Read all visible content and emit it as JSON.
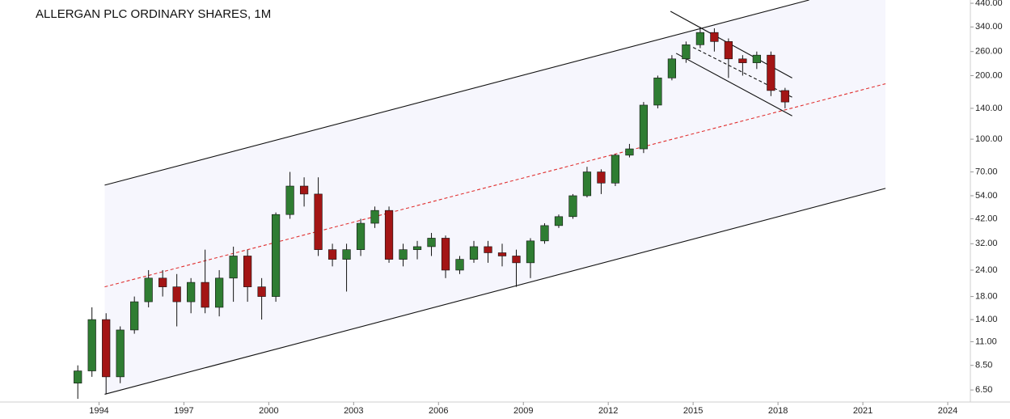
{
  "chart_data": {
    "type": "candlestick",
    "title": "ALLERGAN PLC ORDINARY SHARES, 1M",
    "log_scale": true,
    "up_color": "#2f7d32",
    "down_color": "#a31515",
    "channel_color": "#f6f6fd",
    "xlim": [
      1990.5,
      2024.8
    ],
    "xticks": [
      1994,
      1997,
      2000,
      2003,
      2006,
      2009,
      2012,
      2015,
      2018,
      2021,
      2024
    ],
    "ylim": [
      5.7,
      456
    ],
    "yticks": [
      {
        "value": 6.5,
        "label": "6.50"
      },
      {
        "value": 8.5,
        "label": "8.50"
      },
      {
        "value": 11,
        "label": "11.00"
      },
      {
        "value": 14,
        "label": "14.00"
      },
      {
        "value": 18,
        "label": "18.00"
      },
      {
        "value": 24,
        "label": "24.00"
      },
      {
        "value": 32,
        "label": "32.00"
      },
      {
        "value": 42,
        "label": "42.00"
      },
      {
        "value": 54,
        "label": "54.00"
      },
      {
        "value": 70,
        "label": "70.00"
      },
      {
        "value": 100,
        "label": "100.00"
      },
      {
        "value": 140,
        "label": "140.00"
      },
      {
        "value": 200,
        "label": "200.00"
      },
      {
        "value": 260,
        "label": "260.00"
      },
      {
        "value": 340,
        "label": "340.00"
      },
      {
        "value": 440,
        "label": "440.00"
      }
    ],
    "x": [
      1993.25,
      1993.75,
      1994.25,
      1994.75,
      1995.25,
      1995.75,
      1996.25,
      1996.75,
      1997.25,
      1997.75,
      1998.25,
      1998.75,
      1999.25,
      1999.75,
      2000.25,
      2000.75,
      2001.25,
      2001.75,
      2002.25,
      2002.75,
      2003.25,
      2003.75,
      2004.25,
      2004.75,
      2005.25,
      2005.75,
      2006.25,
      2006.75,
      2007.25,
      2007.75,
      2008.25,
      2008.75,
      2009.25,
      2009.75,
      2010.25,
      2010.75,
      2011.25,
      2011.75,
      2012.25,
      2012.75,
      2013.25,
      2013.75,
      2014.25,
      2014.75,
      2015.25,
      2015.75,
      2016.25,
      2016.75,
      2017.25,
      2017.75,
      2018.25
    ],
    "open": [
      7,
      8,
      14,
      7.5,
      12.5,
      17,
      22,
      20,
      17,
      21,
      16,
      22,
      28,
      20,
      18,
      44,
      60,
      55,
      30,
      27,
      30,
      40,
      46,
      27,
      30,
      31,
      34,
      24,
      27,
      31,
      29,
      28,
      26,
      33,
      39,
      43,
      54,
      70,
      62,
      84,
      90,
      145,
      195,
      240,
      280,
      320,
      290,
      240,
      230,
      250,
      170
    ],
    "high": [
      8.5,
      16,
      15,
      13,
      18,
      24,
      24,
      23,
      22,
      30,
      24,
      31,
      30,
      22,
      45,
      70,
      66,
      66,
      32,
      32,
      42,
      48,
      48,
      32,
      33,
      36,
      35,
      28,
      33,
      33,
      32,
      30,
      34,
      40,
      44,
      55,
      74,
      72,
      85,
      95,
      150,
      200,
      250,
      290,
      340,
      335,
      300,
      250,
      260,
      260,
      175
    ],
    "low": [
      5.9,
      7.5,
      6.2,
      7,
      12,
      16,
      18,
      13,
      15,
      15,
      14.5,
      17,
      17,
      14,
      17,
      42,
      48,
      28,
      25,
      19,
      28,
      38,
      26,
      25,
      27,
      28,
      22,
      23,
      26,
      26,
      25,
      20,
      22,
      32,
      38,
      42,
      53,
      55,
      60,
      82,
      86,
      140,
      190,
      230,
      270,
      260,
      195,
      200,
      215,
      160,
      140
    ],
    "close": [
      8,
      14,
      7.5,
      12.5,
      17,
      22,
      20,
      17,
      21,
      16,
      22,
      28,
      20,
      18,
      44,
      60,
      55,
      30,
      27,
      30,
      40,
      46,
      27,
      30,
      31,
      34,
      24,
      27,
      31,
      29,
      28,
      26,
      33,
      39,
      43,
      54,
      70,
      62,
      84,
      90,
      145,
      195,
      240,
      280,
      320,
      290,
      240,
      230,
      250,
      170,
      150
    ],
    "trend_lines": [
      {
        "x": [
          1994.2,
          2019.1
        ],
        "y": [
          60.6,
          456
        ],
        "color": "#111111",
        "dash": false
      },
      {
        "x": [
          1994.2,
          2021.8
        ],
        "y": [
          6.2,
          58.5
        ],
        "color": "#111111",
        "dash": false
      },
      {
        "x": [
          1994.2,
          2021.8
        ],
        "y": [
          20,
          183
        ],
        "color": "#e03030",
        "dash": true
      },
      {
        "x": [
          2014.2,
          2018.5
        ],
        "y": [
          403,
          195
        ],
        "color": "#111111",
        "dash": false
      },
      {
        "x": [
          2014.4,
          2018.5
        ],
        "y": [
          255,
          129
        ],
        "color": "#111111",
        "dash": false
      },
      {
        "x": [
          2015,
          2018.5
        ],
        "y": [
          272,
          158
        ],
        "color": "#111111",
        "dash": true
      }
    ]
  }
}
